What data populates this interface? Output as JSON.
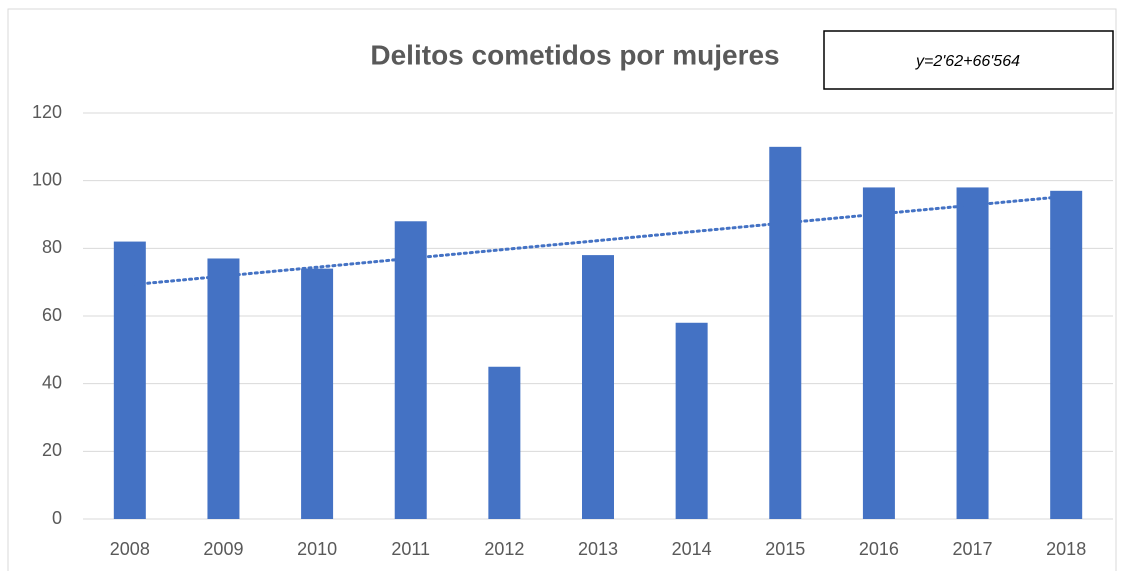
{
  "chart_data": {
    "type": "bar",
    "title": "Delitos cometidos por mujeres",
    "categories": [
      "2008",
      "2009",
      "2010",
      "2011",
      "2012",
      "2013",
      "2014",
      "2015",
      "2016",
      "2017",
      "2018"
    ],
    "values": [
      82,
      77,
      74,
      88,
      45,
      78,
      58,
      110,
      98,
      98,
      97
    ],
    "color": "#4472c4",
    "ylim": [
      0,
      120
    ],
    "yticks": [
      0,
      20,
      40,
      60,
      80,
      100,
      120
    ],
    "grid": true,
    "trendline": {
      "label": "y=2'62+66'564",
      "slope": 2.62,
      "intercept": 66.564,
      "color": "#4472c4"
    }
  }
}
